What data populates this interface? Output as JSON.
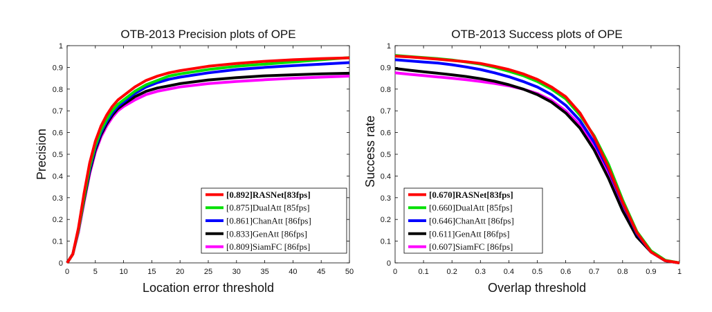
{
  "chart_data": [
    {
      "type": "line",
      "title": "OTB-2013  Precision plots of OPE",
      "xlabel": "Location error threshold",
      "ylabel": "Precision",
      "xlim": [
        0,
        50
      ],
      "ylim": [
        0,
        1
      ],
      "xticks": [
        "0",
        "5",
        "10",
        "15",
        "20",
        "25",
        "30",
        "35",
        "40",
        "45",
        "50"
      ],
      "yticks": [
        "0",
        "0.1",
        "0.2",
        "0.3",
        "0.4",
        "0.5",
        "0.6",
        "0.7",
        "0.8",
        "0.9",
        "1"
      ],
      "legend_position": "bottom-right",
      "x": [
        0,
        1,
        2,
        3,
        4,
        5,
        6,
        7,
        8,
        9,
        10,
        12,
        14,
        16,
        18,
        20,
        25,
        30,
        35,
        40,
        45,
        50
      ],
      "series": [
        {
          "name": "RASNet",
          "score": "[0.892]",
          "tag": "RASNet",
          "fps": "[83fps]",
          "bold": true,
          "color": "#ff0000",
          "values": [
            0,
            0.04,
            0.16,
            0.32,
            0.46,
            0.56,
            0.63,
            0.68,
            0.72,
            0.75,
            0.77,
            0.81,
            0.84,
            0.86,
            0.875,
            0.885,
            0.905,
            0.918,
            0.928,
            0.935,
            0.94,
            0.944
          ]
        },
        {
          "name": "DualAtt",
          "score": "[0.875]",
          "tag": "DualAtt",
          "fps": "[85fps]",
          "bold": false,
          "color": "#00e000",
          "values": [
            0,
            0.04,
            0.15,
            0.3,
            0.44,
            0.54,
            0.61,
            0.66,
            0.7,
            0.73,
            0.75,
            0.79,
            0.82,
            0.84,
            0.86,
            0.87,
            0.89,
            0.905,
            0.915,
            0.925,
            0.935,
            0.945
          ]
        },
        {
          "name": "ChanAtt",
          "score": "[0.861]",
          "tag": "ChanAtt",
          "fps": "[86fps]",
          "bold": false,
          "color": "#0000ff",
          "values": [
            0,
            0.04,
            0.15,
            0.3,
            0.43,
            0.53,
            0.6,
            0.65,
            0.69,
            0.72,
            0.74,
            0.78,
            0.81,
            0.83,
            0.845,
            0.855,
            0.875,
            0.89,
            0.9,
            0.908,
            0.915,
            0.922
          ]
        },
        {
          "name": "GenAtt",
          "score": "[0.833]",
          "tag": "GenAtt",
          "fps": "[86fps]",
          "bold": false,
          "color": "#000000",
          "values": [
            0,
            0.04,
            0.15,
            0.29,
            0.42,
            0.52,
            0.59,
            0.64,
            0.68,
            0.71,
            0.73,
            0.765,
            0.79,
            0.805,
            0.815,
            0.825,
            0.842,
            0.853,
            0.861,
            0.866,
            0.87,
            0.873
          ]
        },
        {
          "name": "SiamFC",
          "score": "[0.809]",
          "tag": "SiamFC",
          "fps": "[86fps]",
          "bold": false,
          "color": "#ff00ff",
          "values": [
            0,
            0.04,
            0.14,
            0.28,
            0.41,
            0.51,
            0.58,
            0.63,
            0.67,
            0.7,
            0.72,
            0.75,
            0.775,
            0.79,
            0.8,
            0.81,
            0.825,
            0.835,
            0.843,
            0.85,
            0.855,
            0.86
          ]
        }
      ]
    },
    {
      "type": "line",
      "title": "OTB-2013  Success plots of OPE",
      "xlabel": "Overlap threshold",
      "ylabel": "Success rate",
      "xlim": [
        0,
        1
      ],
      "ylim": [
        0,
        1
      ],
      "xticks": [
        "0",
        "0.1",
        "0.2",
        "0.3",
        "0.4",
        "0.5",
        "0.6",
        "0.7",
        "0.8",
        "0.9",
        "1"
      ],
      "yticks": [
        "0",
        "0.1",
        "0.2",
        "0.3",
        "0.4",
        "0.5",
        "0.6",
        "0.7",
        "0.8",
        "0.9",
        "1"
      ],
      "legend_position": "bottom-left",
      "x": [
        0,
        0.05,
        0.1,
        0.15,
        0.2,
        0.25,
        0.3,
        0.35,
        0.4,
        0.45,
        0.5,
        0.55,
        0.6,
        0.65,
        0.7,
        0.75,
        0.8,
        0.85,
        0.9,
        0.95,
        1.0
      ],
      "series": [
        {
          "name": "RASNet",
          "score": "[0.670]",
          "tag": "RASNet",
          "fps": "[83fps]",
          "bold": true,
          "color": "#ff0000",
          "values": [
            0.952,
            0.948,
            0.943,
            0.938,
            0.932,
            0.926,
            0.918,
            0.905,
            0.89,
            0.87,
            0.845,
            0.81,
            0.765,
            0.69,
            0.58,
            0.44,
            0.28,
            0.14,
            0.05,
            0.01,
            0.0
          ]
        },
        {
          "name": "DualAtt",
          "score": "[0.660]",
          "tag": "DualAtt",
          "fps": "[85fps]",
          "bold": false,
          "color": "#00e000",
          "values": [
            0.955,
            0.95,
            0.945,
            0.94,
            0.934,
            0.925,
            0.915,
            0.9,
            0.882,
            0.862,
            0.835,
            0.8,
            0.755,
            0.68,
            0.585,
            0.455,
            0.29,
            0.145,
            0.055,
            0.012,
            0.0
          ]
        },
        {
          "name": "ChanAtt",
          "score": "[0.646]",
          "tag": "ChanAtt",
          "fps": "[86fps]",
          "bold": false,
          "color": "#0000ff",
          "values": [
            0.935,
            0.93,
            0.925,
            0.92,
            0.912,
            0.902,
            0.89,
            0.875,
            0.857,
            0.835,
            0.81,
            0.775,
            0.725,
            0.655,
            0.555,
            0.43,
            0.275,
            0.135,
            0.05,
            0.01,
            0.0
          ]
        },
        {
          "name": "GenAtt",
          "score": "[0.611]",
          "tag": "GenAtt",
          "fps": "[86fps]",
          "bold": false,
          "color": "#000000",
          "values": [
            0.895,
            0.887,
            0.88,
            0.873,
            0.866,
            0.858,
            0.848,
            0.836,
            0.82,
            0.8,
            0.775,
            0.74,
            0.69,
            0.62,
            0.52,
            0.39,
            0.24,
            0.12,
            0.05,
            0.01,
            0.0
          ]
        },
        {
          "name": "SiamFC",
          "score": "[0.607]",
          "tag": "SiamFC",
          "fps": "[86fps]",
          "bold": false,
          "color": "#ff00ff",
          "values": [
            0.875,
            0.868,
            0.862,
            0.856,
            0.85,
            0.843,
            0.835,
            0.826,
            0.815,
            0.8,
            0.78,
            0.748,
            0.7,
            0.635,
            0.54,
            0.41,
            0.26,
            0.13,
            0.05,
            0.01,
            0.0
          ]
        }
      ]
    }
  ]
}
